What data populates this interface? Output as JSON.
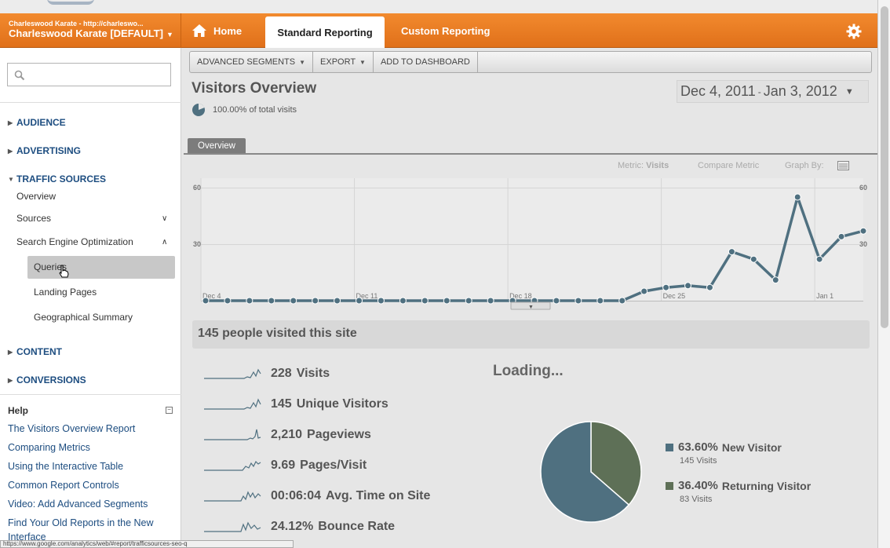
{
  "header": {
    "account_line1": "Charleswood Karate - http://charleswo...",
    "account_line2": "Charleswood Karate [DEFAULT]",
    "tabs": [
      {
        "label": "Home"
      },
      {
        "label": "Standard Reporting"
      },
      {
        "label": "Custom Reporting"
      }
    ],
    "accent_color": "#e97d23"
  },
  "sidebar": {
    "search_placeholder": "",
    "sections": {
      "audience": "AUDIENCE",
      "advertising": "ADVERTISING",
      "traffic_sources": "TRAFFIC SOURCES",
      "content": "CONTENT",
      "conversions": "CONVERSIONS"
    },
    "traffic_items": {
      "overview": "Overview",
      "sources": "Sources",
      "seo": "Search Engine Optimization",
      "queries": "Queries",
      "landing_pages": "Landing Pages",
      "geo_summary": "Geographical Summary"
    },
    "help": {
      "title": "Help",
      "links": [
        "The Visitors Overview Report",
        "Comparing Metrics",
        "Using the Interactive Table",
        "Common Report Controls",
        "Video: Add Advanced Segments",
        "Find Your Old Reports in the New",
        "Interface"
      ]
    }
  },
  "status_url": "https://www.google.com/analytics/web/#report/trafficsources-seo-q",
  "toolbar": {
    "advanced_segments": "ADVANCED SEGMENTS",
    "export": "EXPORT",
    "add_to_dashboard": "ADD TO DASHBOARD"
  },
  "report": {
    "title": "Visitors Overview",
    "percent_text": "100.00% of total visits",
    "date_start": "Dec 4, 2011",
    "date_sep": "-",
    "date_end": "Jan 3, 2012",
    "tab_overview": "Overview",
    "metric_label": "Metric:",
    "metric_value": "Visits",
    "compare_metric": "Compare Metric",
    "graph_by": "Graph By:"
  },
  "chart_data": {
    "type": "line",
    "y_ticks": [
      "60",
      "30"
    ],
    "ylim": [
      0,
      60
    ],
    "x_tick_labels": [
      "Dec 4",
      "Dec 11",
      "Dec 18",
      "Dec 25",
      "Jan 1"
    ],
    "x_tick_indices": [
      0,
      7,
      14,
      21,
      28
    ],
    "grid": true,
    "series": [
      {
        "color": "#4f7080",
        "values": [
          0,
          0,
          0,
          0,
          0,
          0,
          0,
          0,
          0,
          0,
          0,
          0,
          0,
          0,
          0,
          0,
          0,
          0,
          0,
          0,
          5,
          7,
          8,
          7,
          26,
          22,
          11,
          55,
          22,
          34,
          37
        ]
      }
    ]
  },
  "summary": {
    "text": "145 people visited this site",
    "loading": "Loading...",
    "metrics": [
      {
        "value": "228",
        "label": "Visits"
      },
      {
        "value": "145",
        "label": "Unique Visitors"
      },
      {
        "value": "2,210",
        "label": "Pageviews"
      },
      {
        "value": "9.69",
        "label": "Pages/Visit"
      },
      {
        "value": "00:06:04",
        "label": "Avg. Time on Site"
      },
      {
        "value": "24.12%",
        "label": "Bounce Rate"
      }
    ]
  },
  "pie": {
    "slices": [
      {
        "name": "New Visitor",
        "percent_text": "63.60%",
        "fraction": 0.636,
        "visits_text": "145 Visits",
        "color": "#4f7080"
      },
      {
        "name": "Returning Visitor",
        "percent_text": "36.40%",
        "fraction": 0.364,
        "visits_text": "83 Visits",
        "color": "#5e7057"
      }
    ]
  }
}
